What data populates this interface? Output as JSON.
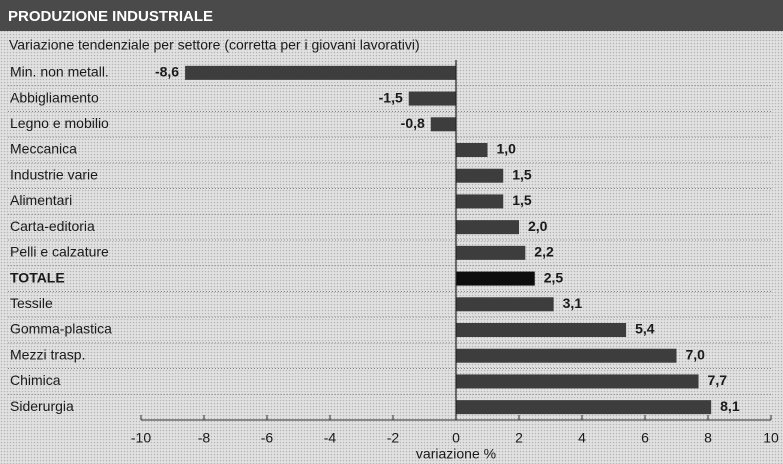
{
  "chart_data": {
    "type": "barh",
    "title": "PRODUZIONE INDUSTRIALE",
    "subtitle": "Variazione tendenziale per settore (corretta per i giovani lavorativi)",
    "x_label": "variazione %",
    "categories": [
      "Min. non metall.",
      "Abbigliamento",
      "Legno e mobilio",
      "Meccanica",
      "Industrie varie",
      "Alimentari",
      "Carta-editoria",
      "Pelli e calzature",
      "TOTALE",
      "Tessile",
      "Gomma-plastica",
      "Mezzi trasp.",
      "Chimica",
      "Siderurgia"
    ],
    "values": [
      -8.6,
      -1.5,
      -0.8,
      1.0,
      1.5,
      1.5,
      2.0,
      2.2,
      2.5,
      3.1,
      5.4,
      7.0,
      7.7,
      8.1
    ],
    "value_labels": [
      "-8,6",
      "-1,5",
      "-0,8",
      "1,0",
      "1,5",
      "1,5",
      "2,0",
      "2,2",
      "2,5",
      "3,1",
      "5,4",
      "7,0",
      "7,7",
      "8,1"
    ],
    "color": "#3d3d3d",
    "colors": [
      "#3d3d3d",
      "#3d3d3d",
      "#3d3d3d",
      "#3d3d3d",
      "#3d3d3d",
      "#3d3d3d",
      "#3d3d3d",
      "#3d3d3d",
      "#0d0d0d",
      "#3d3d3d",
      "#3d3d3d",
      "#3d3d3d",
      "#3d3d3d",
      "#3d3d3d"
    ],
    "xlim": [
      -10,
      10
    ],
    "xticks": [
      -10,
      -8,
      -6,
      -4,
      -2,
      0,
      2,
      4,
      6,
      8,
      10
    ]
  }
}
